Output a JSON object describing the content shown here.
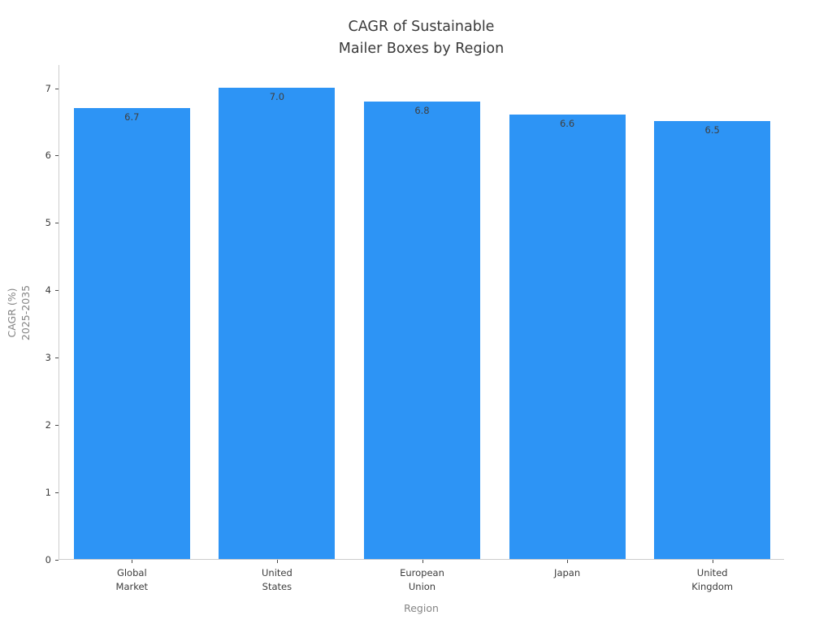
{
  "chart_data": {
    "type": "bar",
    "title": "CAGR of Sustainable\nMailer Boxes by Region",
    "xlabel": "Region",
    "ylabel": "CAGR (%)\n2025-2035",
    "categories": [
      "Global\nMarket",
      "United\nStates",
      "European\nUnion",
      "Japan",
      "United\nKingdom"
    ],
    "values": [
      6.7,
      7.0,
      6.8,
      6.6,
      6.5
    ],
    "value_labels": [
      "6.7",
      "7.0",
      "6.8",
      "6.6",
      "6.5"
    ],
    "ytick_labels": [
      "0",
      "1",
      "2",
      "3",
      "4",
      "5",
      "6",
      "7"
    ],
    "ylim": [
      0,
      7.35
    ],
    "bar_width_fraction": 0.8,
    "grid": false,
    "legend": false,
    "colors": {
      "bar": "#2d94f5",
      "title_text": "#3a3a3a",
      "tick_text": "#3c3c3c",
      "axis_label_text": "#858585",
      "value_label_text": "#3f3f3f",
      "spine": "#cccccc",
      "tick_mark": "#4a4a4a",
      "background": "#ffffff"
    }
  }
}
